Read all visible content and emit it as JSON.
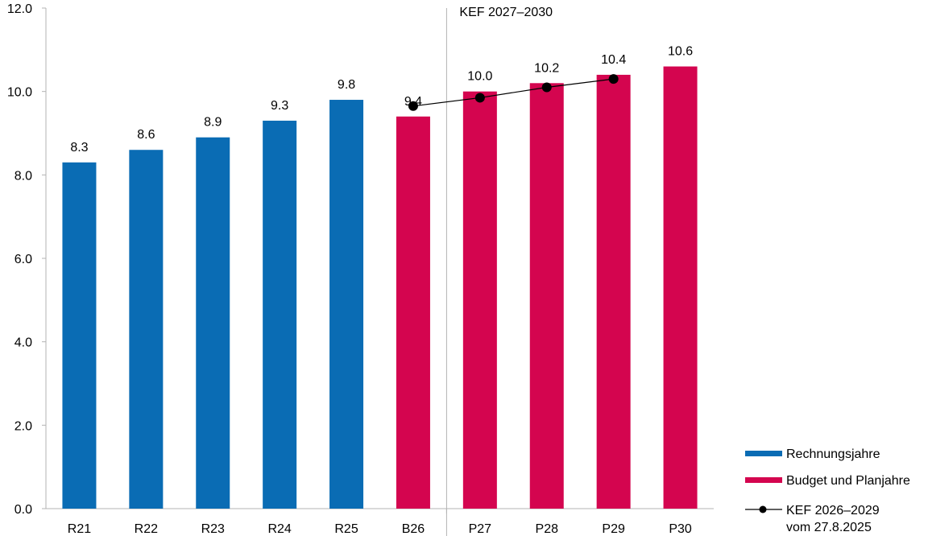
{
  "chart_data": {
    "type": "bar",
    "categories": [
      "R21",
      "R22",
      "R23",
      "R24",
      "R25",
      "B26",
      "P27",
      "P28",
      "P29",
      "P30"
    ],
    "values": [
      8.3,
      8.6,
      8.9,
      9.3,
      9.8,
      9.4,
      10.0,
      10.2,
      10.4,
      10.6
    ],
    "data_labels": [
      "8.3",
      "8.6",
      "8.9",
      "9.3",
      "9.8",
      "9.4",
      "10.0",
      "10.2",
      "10.4",
      "10.6"
    ],
    "bar_series": [
      1,
      1,
      1,
      1,
      1,
      2,
      2,
      2,
      2,
      2
    ],
    "line": {
      "categories": [
        "B26",
        "P27",
        "P28",
        "P29"
      ],
      "values": [
        9.65,
        9.85,
        10.1,
        10.3
      ]
    },
    "ylim": [
      0,
      12
    ],
    "yticks": [
      0,
      2,
      4,
      6,
      8,
      10,
      12
    ],
    "ytick_labels": [
      "0.0",
      "2.0",
      "4.0",
      "6.0",
      "8.0",
      "10.0",
      "12.0"
    ],
    "divider_after": "B26",
    "annotation": "KEF 2027–2030",
    "legend": [
      {
        "label": "Rechnungsjahre",
        "kind": "bar",
        "color": "#0a6cb4"
      },
      {
        "label": "Budget und Planjahre",
        "kind": "bar",
        "color": "#d4054f"
      },
      {
        "label": "KEF 2026–2029",
        "label_line2": "vom 27.8.2025",
        "kind": "line",
        "color": "#000000"
      }
    ],
    "legend_position": "bottom-right",
    "grid": false,
    "colors": {
      "series1": "#0a6cb4",
      "series2": "#d4054f",
      "line": "#000000",
      "axis": "#b3b3b3"
    }
  }
}
